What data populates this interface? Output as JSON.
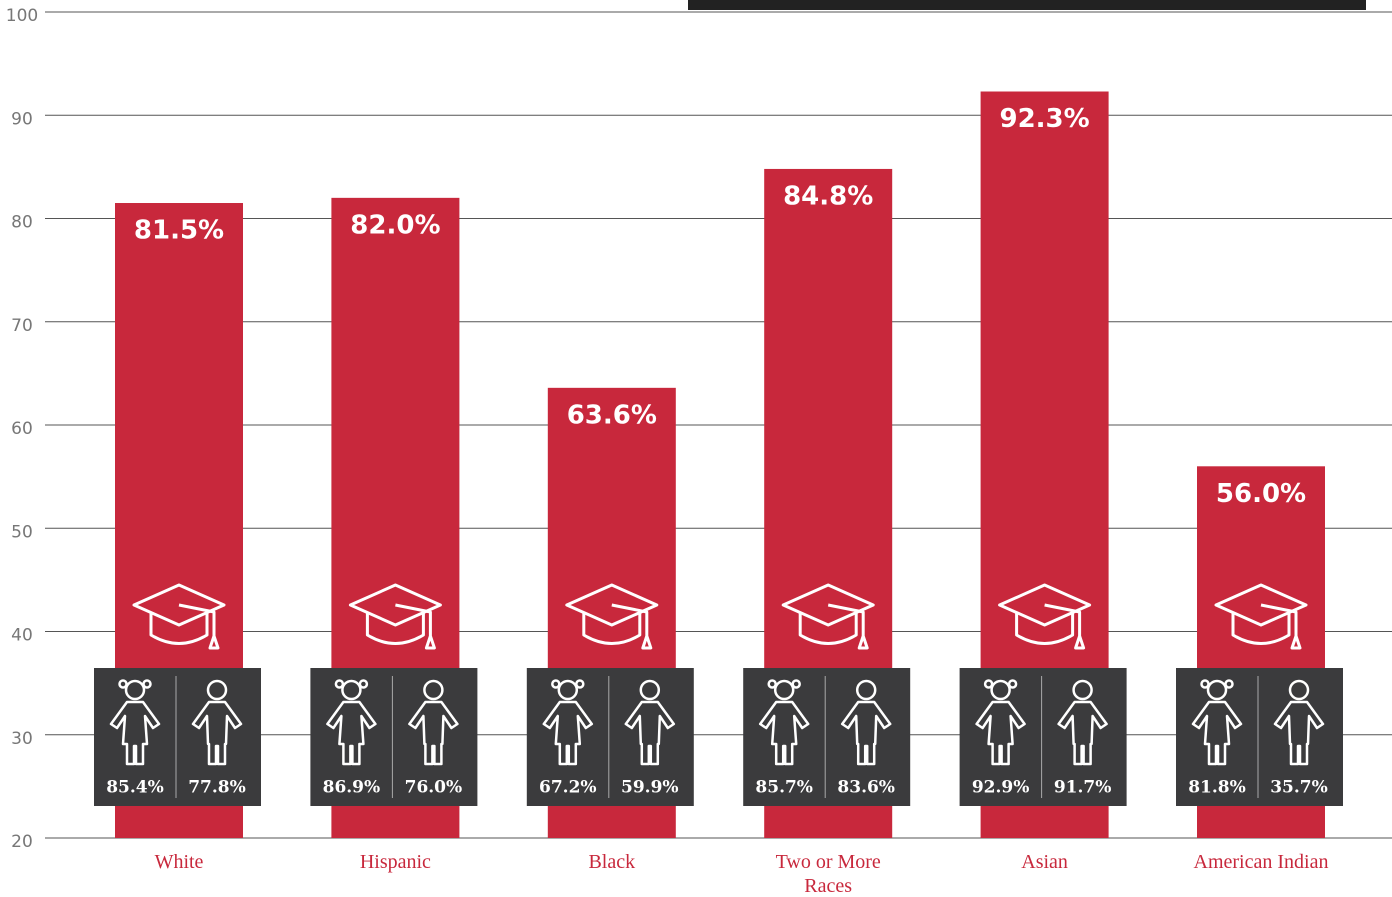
{
  "chart_data": {
    "type": "bar",
    "categories": [
      "White",
      "Hispanic",
      "Black",
      "Two or More Races",
      "Asian",
      "American Indian"
    ],
    "values": [
      81.5,
      82.0,
      63.6,
      84.8,
      92.3,
      56.0
    ],
    "value_labels": [
      "81.5%",
      "82.0%",
      "63.6%",
      "84.8%",
      "92.3%",
      "56.0%"
    ],
    "color": "#c8283c",
    "subgroups": [
      {
        "values": [
          85.4,
          86.9,
          67.2,
          85.7,
          92.9,
          81.8
        ],
        "value_labels": [
          "85.4%",
          "86.9%",
          "67.2%",
          "85.7%",
          "92.9%",
          "81.8%"
        ]
      },
      {
        "values": [
          77.8,
          76.0,
          59.9,
          83.6,
          91.7,
          35.7
        ],
        "value_labels": [
          "77.8%",
          "76.0%",
          "59.9%",
          "83.6%",
          "91.7%",
          "35.7%"
        ]
      }
    ],
    "ylim": [
      20,
      100
    ],
    "yticks": [
      20,
      30,
      40,
      50,
      60,
      70,
      80,
      90,
      100
    ],
    "grid": true
  }
}
